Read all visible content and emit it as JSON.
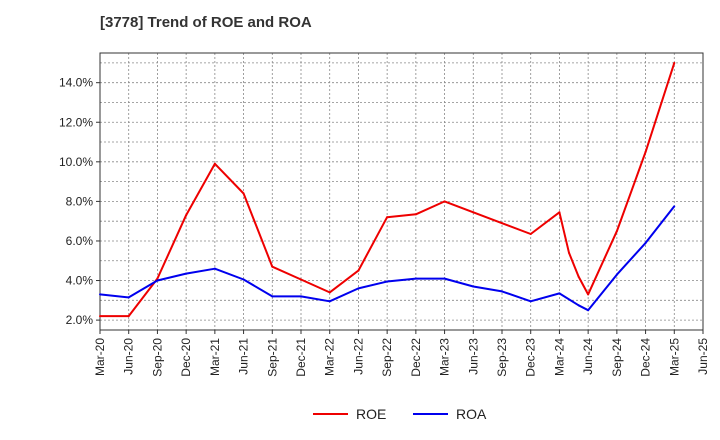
{
  "chart_data": {
    "type": "line",
    "title": "[3778]  Trend of ROE and ROA",
    "xlabel": "",
    "ylabel": "",
    "x_tick_labels": [
      "Mar-20",
      "Jun-20",
      "Sep-20",
      "Dec-20",
      "Mar-21",
      "Jun-21",
      "Sep-21",
      "Dec-21",
      "Mar-22",
      "Jun-22",
      "Sep-22",
      "Dec-22",
      "Mar-23",
      "Jun-23",
      "Sep-23",
      "Dec-23",
      "Mar-24",
      "Jun-24",
      "Sep-24",
      "Dec-24",
      "Mar-25",
      "Jun-25"
    ],
    "y_tick_labels": [
      "2.0%",
      "4.0%",
      "6.0%",
      "8.0%",
      "10.0%",
      "12.0%",
      "14.0%"
    ],
    "y_ticks": [
      2,
      4,
      6,
      8,
      10,
      12,
      14
    ],
    "ylim": [
      1.5,
      15.5
    ],
    "grid": true,
    "legend_position": "bottom-center",
    "series": [
      {
        "name": "ROE",
        "color": "#ee0000",
        "points": [
          {
            "x": "Mar-20",
            "y": 2.2
          },
          {
            "x": "Jun-20",
            "y": 2.2
          },
          {
            "x": "Sep-20",
            "y": 4.1
          },
          {
            "x": "Dec-20",
            "y": 7.3
          },
          {
            "x": "Mar-21",
            "y": 9.9
          },
          {
            "x": "Jun-21",
            "y": 8.4
          },
          {
            "x": "Sep-21",
            "y": 4.7
          },
          {
            "x": "Dec-21",
            "y": 4.05
          },
          {
            "x": "Mar-22",
            "y": 3.4
          },
          {
            "x": "Jun-22",
            "y": 4.5
          },
          {
            "x": "Sep-22",
            "y": 7.2
          },
          {
            "x": "Dec-22",
            "y": 7.35
          },
          {
            "x": "Mar-23",
            "y": 8.0
          },
          {
            "x": "Jun-23",
            "y": 7.45
          },
          {
            "x": "Sep-23",
            "y": 6.9
          },
          {
            "x": "Dec-23",
            "y": 6.35
          },
          {
            "x": "Mar-24",
            "y": 7.45
          },
          {
            "x": "Apr-24",
            "y": 5.4
          },
          {
            "x": "May-24",
            "y": 4.2
          },
          {
            "x": "Jun-24",
            "y": 3.3
          },
          {
            "x": "Sep-24",
            "y": 6.5
          },
          {
            "x": "Dec-24",
            "y": 10.5
          },
          {
            "x": "Mar-25",
            "y": 15.0
          }
        ]
      },
      {
        "name": "ROA",
        "color": "#0000ee",
        "points": [
          {
            "x": "Mar-20",
            "y": 3.3
          },
          {
            "x": "Jun-20",
            "y": 3.15
          },
          {
            "x": "Sep-20",
            "y": 4.0
          },
          {
            "x": "Dec-20",
            "y": 4.35
          },
          {
            "x": "Mar-21",
            "y": 4.6
          },
          {
            "x": "Jun-21",
            "y": 4.05
          },
          {
            "x": "Sep-21",
            "y": 3.2
          },
          {
            "x": "Dec-21",
            "y": 3.2
          },
          {
            "x": "Mar-22",
            "y": 2.95
          },
          {
            "x": "Jun-22",
            "y": 3.6
          },
          {
            "x": "Sep-22",
            "y": 3.95
          },
          {
            "x": "Dec-22",
            "y": 4.1
          },
          {
            "x": "Mar-23",
            "y": 4.1
          },
          {
            "x": "Jun-23",
            "y": 3.7
          },
          {
            "x": "Sep-23",
            "y": 3.45
          },
          {
            "x": "Dec-23",
            "y": 2.95
          },
          {
            "x": "Mar-24",
            "y": 3.35
          },
          {
            "x": "May-24",
            "y": 2.75
          },
          {
            "x": "Jun-24",
            "y": 2.5
          },
          {
            "x": "Sep-24",
            "y": 4.3
          },
          {
            "x": "Dec-24",
            "y": 5.9
          },
          {
            "x": "Mar-25",
            "y": 7.75
          }
        ]
      }
    ]
  }
}
